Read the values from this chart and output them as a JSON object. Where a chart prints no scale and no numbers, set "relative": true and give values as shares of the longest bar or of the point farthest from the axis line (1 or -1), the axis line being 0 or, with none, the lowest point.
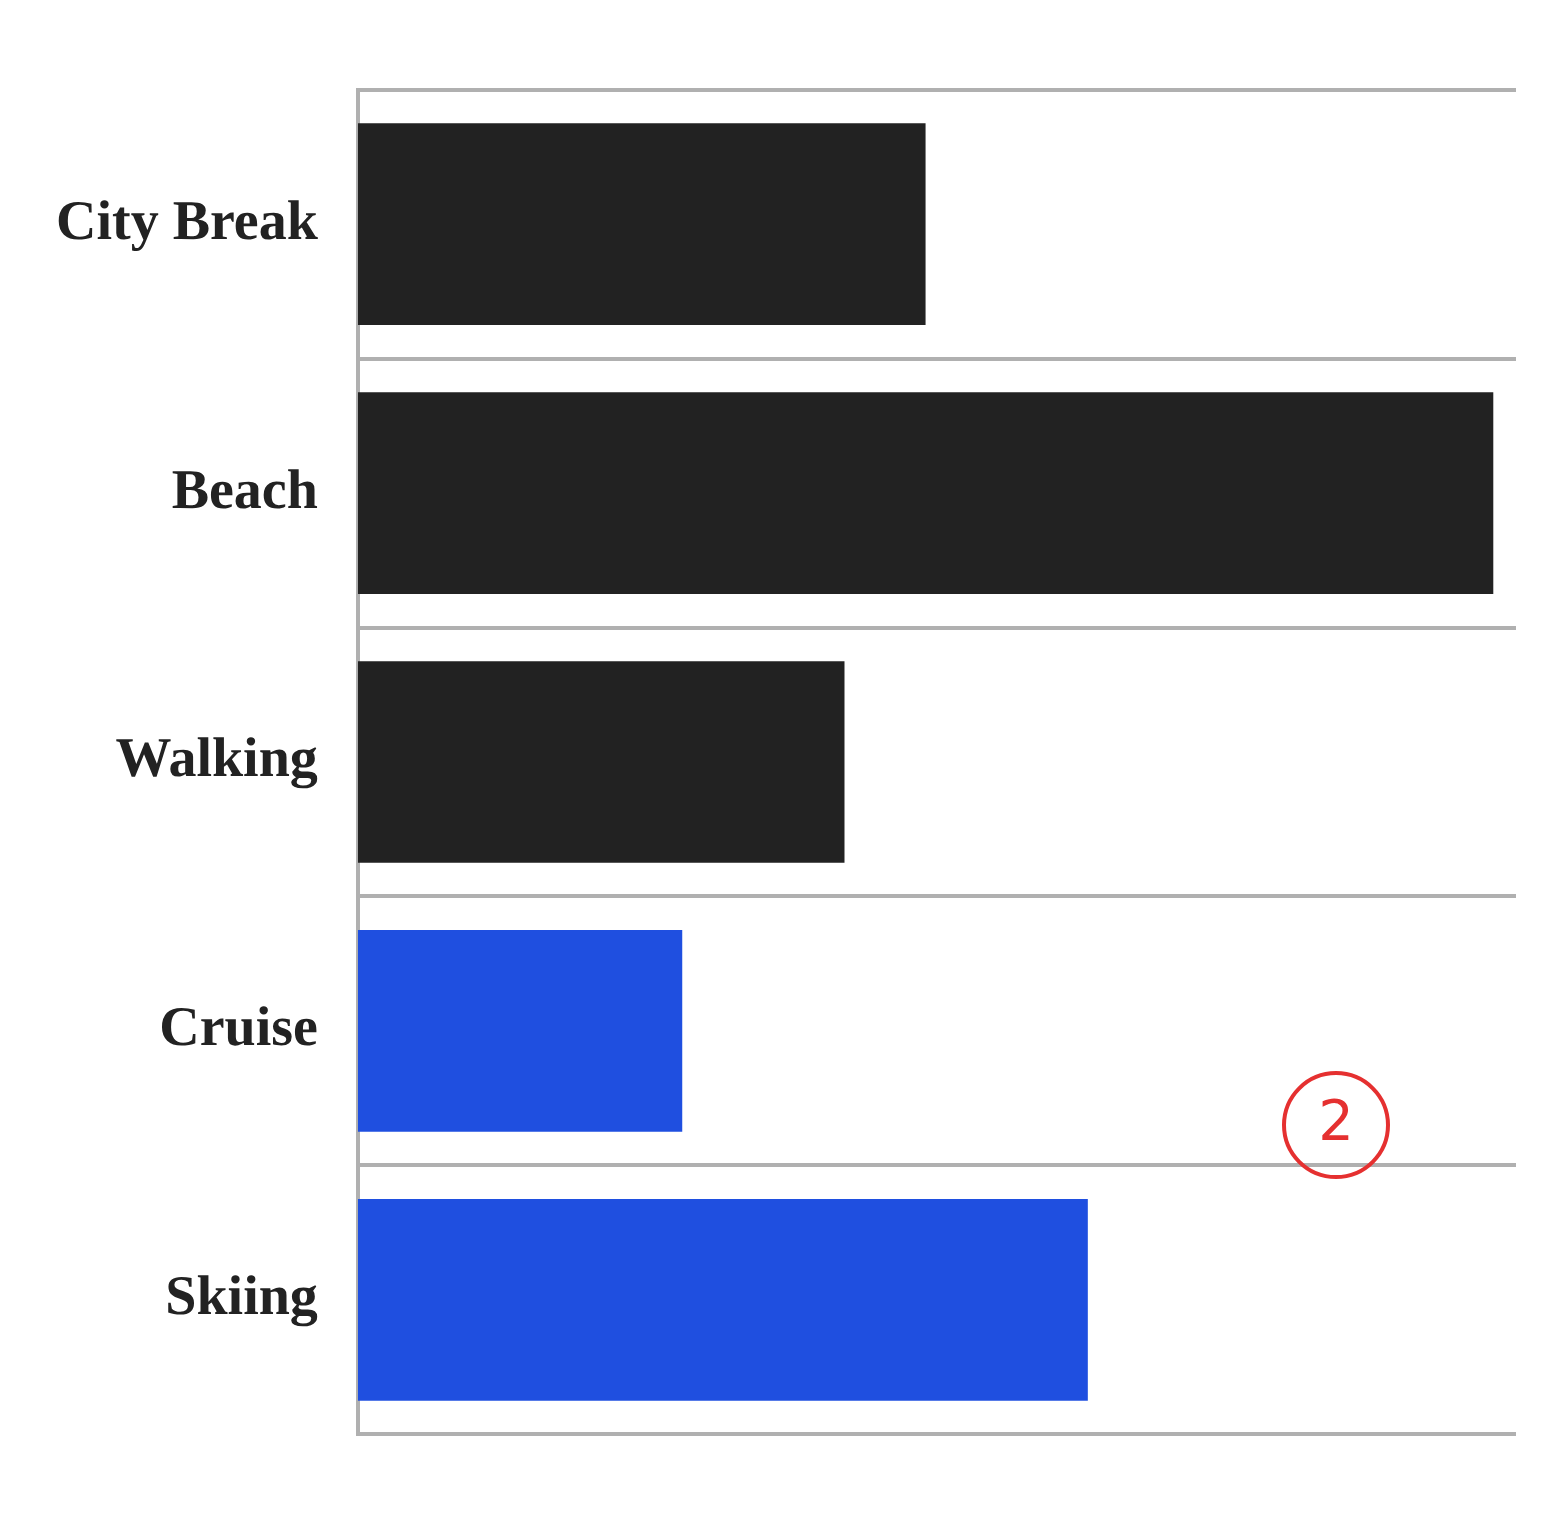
{
  "chart_data": {
    "type": "bar",
    "orientation": "horizontal",
    "relative": true,
    "categories": [
      "City Break",
      "Beach",
      "Walking",
      "Cruise",
      "Skiing"
    ],
    "values": [
      0.5,
      1,
      0.4286,
      0.2857,
      0.6429
    ],
    "colors": [
      "#222222",
      "#222222",
      "#222222",
      "#1f4fe0",
      "#1f4fe0"
    ],
    "grid": "y",
    "annotations": [
      "2"
    ]
  }
}
